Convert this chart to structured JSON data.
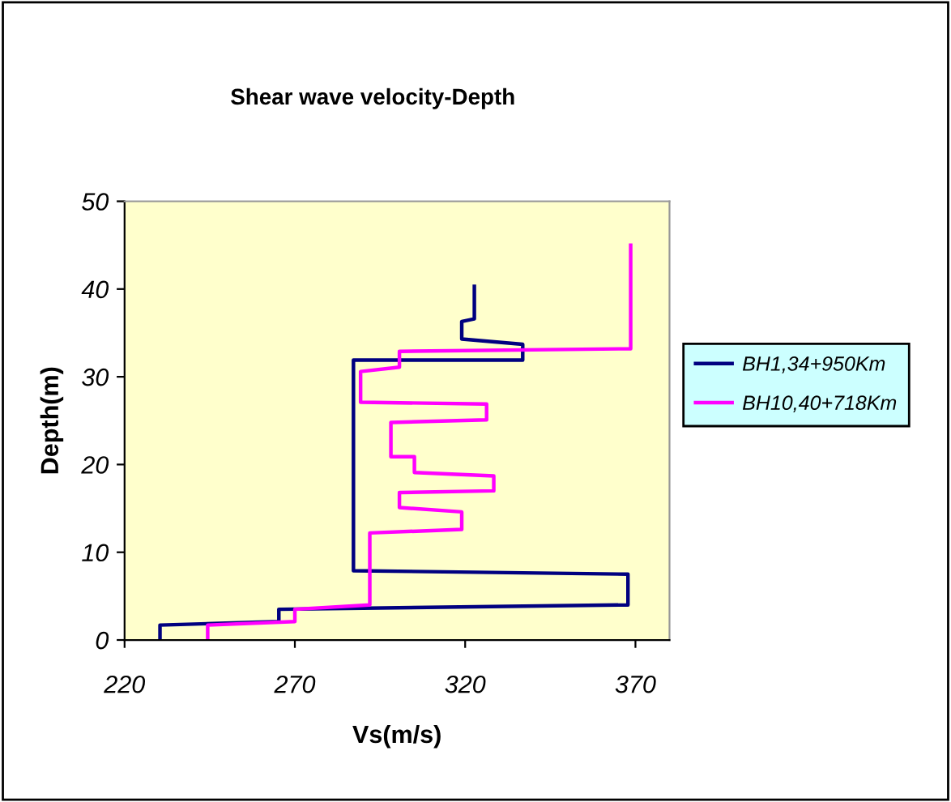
{
  "chart_data": {
    "type": "line",
    "title": "Shear wave velocity-Depth",
    "xlabel": "Vs(m/s)",
    "ylabel": "Depth(m)",
    "xlim": [
      220,
      380
    ],
    "xticks": [
      220,
      270,
      320,
      370
    ],
    "ylim": [
      0,
      50
    ],
    "yticks": [
      0,
      10,
      20,
      30,
      40,
      50
    ],
    "grid": false,
    "legend": "right",
    "series": [
      {
        "name": "BH1,34+950Km",
        "color": "#000080",
        "x": [
          230.4,
          230.4,
          265.3,
          265.3,
          367.8,
          367.8,
          287.2,
          287.2,
          336.9,
          336.9,
          319,
          319,
          322.7,
          322.7
        ],
        "values": [
          0,
          1.7,
          2.1,
          3.5,
          4.0,
          7.5,
          7.9,
          31.9,
          31.9,
          33.7,
          34.3,
          36.3,
          36.6,
          40.3
        ]
      },
      {
        "name": "BH10,40+718Km",
        "color": "#ff00ff",
        "x": [
          244.4,
          244.4,
          270,
          270,
          292,
          292,
          319,
          319,
          300.7,
          300.7,
          328.4,
          328.4,
          305.1,
          305.1,
          298.2,
          298.2,
          326.3,
          326.3,
          289.3,
          289.3,
          300.7,
          300.7,
          368.6,
          368.6
        ],
        "values": [
          0,
          1.7,
          2.1,
          3.5,
          4.0,
          12.2,
          12.6,
          14.6,
          15.1,
          16.8,
          17.0,
          18.7,
          19.1,
          20.9,
          20.9,
          24.8,
          25.1,
          26.9,
          27.1,
          30.6,
          31.1,
          32.9,
          33.2,
          45.0
        ]
      }
    ]
  }
}
